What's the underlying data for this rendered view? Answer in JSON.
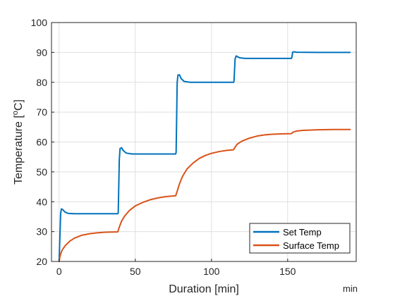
{
  "chart_data": {
    "type": "line",
    "title": "",
    "xlabel": "Duration [min]",
    "x_unit_label": "min",
    "ylabel_main": "Temperature [",
    "ylabel_sup": "o",
    "ylabel_tail": "C]",
    "xlim": [
      -5,
      195
    ],
    "ylim": [
      20,
      100
    ],
    "xticks": [
      0,
      50,
      100,
      150
    ],
    "yticks": [
      20,
      30,
      40,
      50,
      60,
      70,
      80,
      90,
      100
    ],
    "grid": true,
    "legend_position": "bottom-right",
    "series": [
      {
        "name": "Set Temp",
        "color": "#0072BD",
        "points": [
          [
            0,
            20
          ],
          [
            1,
            36
          ],
          [
            1.5,
            37.6
          ],
          [
            2.5,
            37.3
          ],
          [
            4,
            36.5
          ],
          [
            6,
            36.1
          ],
          [
            10,
            36
          ],
          [
            20,
            36
          ],
          [
            30,
            36
          ],
          [
            38.5,
            36
          ],
          [
            38.8,
            36.2
          ],
          [
            39.5,
            54
          ],
          [
            40,
            57.8
          ],
          [
            41,
            58.1
          ],
          [
            42,
            57.2
          ],
          [
            44,
            56.3
          ],
          [
            48,
            56
          ],
          [
            60,
            56
          ],
          [
            70,
            56
          ],
          [
            76.5,
            56
          ],
          [
            76.8,
            56.5
          ],
          [
            77.5,
            80
          ],
          [
            78,
            82.4
          ],
          [
            79,
            82.5
          ],
          [
            80,
            81.3
          ],
          [
            82,
            80.3
          ],
          [
            86,
            80
          ],
          [
            100,
            80
          ],
          [
            114.5,
            80
          ],
          [
            114.8,
            80.4
          ],
          [
            115.5,
            87.8
          ],
          [
            116.2,
            88.8
          ],
          [
            117,
            88.6
          ],
          [
            118.5,
            88.2
          ],
          [
            122,
            88
          ],
          [
            140,
            88
          ],
          [
            152.5,
            88
          ],
          [
            152.8,
            88.4
          ],
          [
            153.3,
            90.1
          ],
          [
            154,
            90.2
          ],
          [
            156,
            90.05
          ],
          [
            170,
            90
          ],
          [
            185,
            90
          ],
          [
            191,
            90
          ]
        ]
      },
      {
        "name": "Surface Temp",
        "color": "#D95319",
        "points": [
          [
            0,
            20
          ],
          [
            0.5,
            21.5
          ],
          [
            1,
            22.5
          ],
          [
            2,
            23.8
          ],
          [
            4,
            25.3
          ],
          [
            7,
            26.8
          ],
          [
            10,
            27.8
          ],
          [
            15,
            28.8
          ],
          [
            20,
            29.3
          ],
          [
            25,
            29.6
          ],
          [
            30,
            29.8
          ],
          [
            38.5,
            29.9
          ],
          [
            39.5,
            31.5
          ],
          [
            41,
            33.5
          ],
          [
            43,
            35.2
          ],
          [
            46,
            37
          ],
          [
            50,
            38.6
          ],
          [
            55,
            39.8
          ],
          [
            60,
            40.7
          ],
          [
            65,
            41.3
          ],
          [
            70,
            41.7
          ],
          [
            76.5,
            42
          ],
          [
            77.5,
            43.5
          ],
          [
            79,
            46
          ],
          [
            81,
            48.5
          ],
          [
            84,
            51
          ],
          [
            88,
            53
          ],
          [
            92,
            54.5
          ],
          [
            96,
            55.5
          ],
          [
            100,
            56.2
          ],
          [
            105,
            56.8
          ],
          [
            110,
            57.2
          ],
          [
            114.5,
            57.4
          ],
          [
            115.5,
            58.3
          ],
          [
            117,
            59.3
          ],
          [
            120,
            60.3
          ],
          [
            125,
            61.3
          ],
          [
            130,
            62
          ],
          [
            135,
            62.4
          ],
          [
            140,
            62.6
          ],
          [
            145,
            62.7
          ],
          [
            152.5,
            62.8
          ],
          [
            153.5,
            63.3
          ],
          [
            156,
            63.7
          ],
          [
            160,
            63.9
          ],
          [
            170,
            64.1
          ],
          [
            180,
            64.2
          ],
          [
            191,
            64.2
          ]
        ]
      }
    ]
  }
}
